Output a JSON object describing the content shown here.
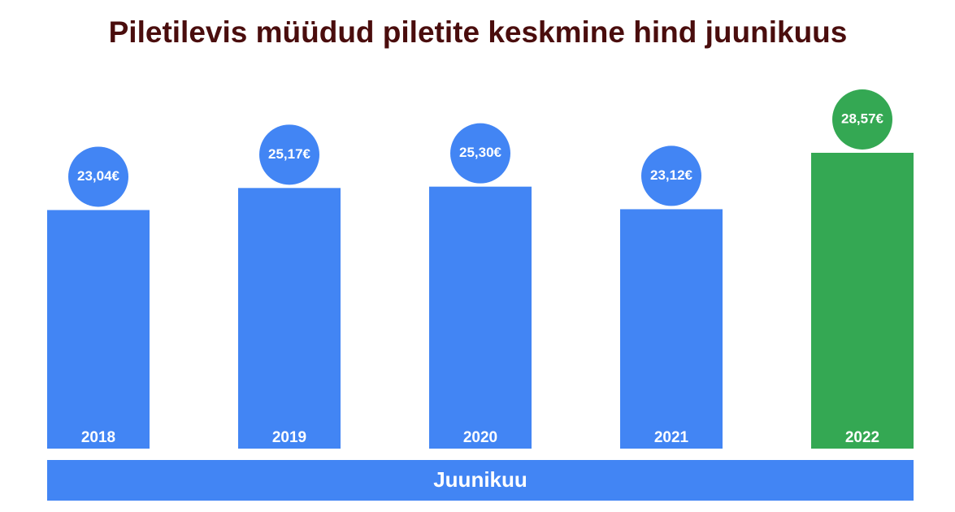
{
  "chart_data": {
    "type": "bar",
    "title": "Piletilevis müüdud piletite keskmine hind juunikuus",
    "categories": [
      "2018",
      "2019",
      "2020",
      "2021",
      "2022"
    ],
    "values": [
      23.04,
      25.17,
      25.3,
      23.12,
      28.57
    ],
    "value_labels": [
      "23,04€",
      "25,17€",
      "25,30€",
      "23,12€",
      "28,57€"
    ],
    "colors": [
      "#4285f4",
      "#4285f4",
      "#4285f4",
      "#4285f4",
      "#34a853"
    ],
    "x_label": "Juunikuu",
    "x_label_color": "#4285f4"
  }
}
